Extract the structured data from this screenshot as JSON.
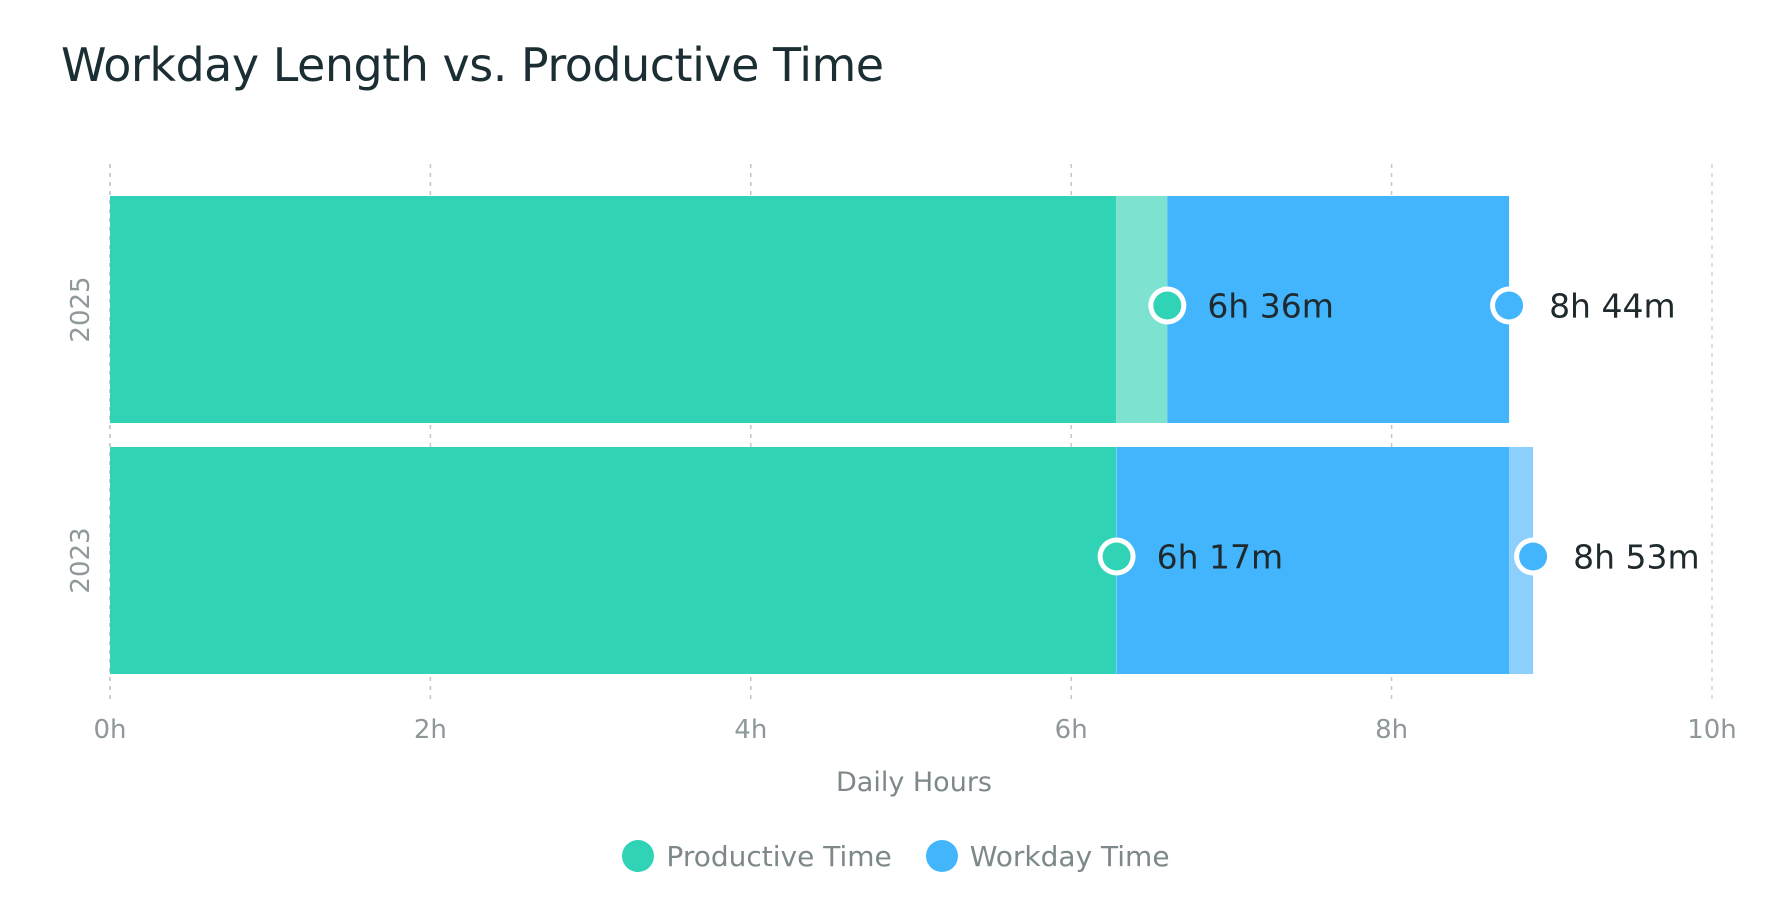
{
  "chart_data": {
    "type": "bar",
    "orientation": "horizontal",
    "title": "Workday Length vs. Productive Time",
    "xlabel": "Daily Hours",
    "ylabel": "",
    "xlim": [
      0,
      10
    ],
    "x_ticks": [
      {
        "value": 0,
        "label": "0h"
      },
      {
        "value": 2,
        "label": "2h"
      },
      {
        "value": 4,
        "label": "4h"
      },
      {
        "value": 6,
        "label": "6h"
      },
      {
        "value": 8,
        "label": "8h"
      },
      {
        "value": 10,
        "label": "10h"
      }
    ],
    "grid": "vertical-dashed",
    "legend": "bottom-center",
    "categories": [
      "2025",
      "2023"
    ],
    "series": [
      {
        "name": "Productive Time",
        "color": "#31d3b7",
        "values": [
          6.6,
          6.2833
        ],
        "value_labels": [
          "6h 36m",
          "6h 17m"
        ]
      },
      {
        "name": "Workday Time",
        "color": "#43b5fd",
        "values": [
          8.7333,
          8.8833
        ],
        "value_labels": [
          "8h 44m",
          "8h 53m"
        ]
      }
    ]
  },
  "colors": {
    "productive": "#31d3b7",
    "productive_light": "#7de3d0",
    "workday": "#43b5fd",
    "workday_light": "#8ccefc",
    "grid": "#c8cdcf",
    "title": "#1b2e33"
  }
}
